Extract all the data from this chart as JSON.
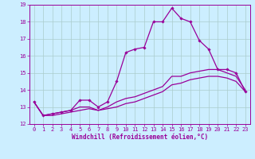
{
  "xlabel": "Windchill (Refroidissement éolien,°C)",
  "xlim": [
    -0.5,
    23.5
  ],
  "ylim": [
    12,
    19
  ],
  "yticks": [
    12,
    13,
    14,
    15,
    16,
    17,
    18,
    19
  ],
  "xticks": [
    0,
    1,
    2,
    3,
    4,
    5,
    6,
    7,
    8,
    9,
    10,
    11,
    12,
    13,
    14,
    15,
    16,
    17,
    18,
    19,
    20,
    21,
    22,
    23
  ],
  "bg_color": "#cceeff",
  "line_color": "#990099",
  "grid_color": "#aacccc",
  "series1_x": [
    0,
    1,
    2,
    3,
    4,
    5,
    6,
    7,
    8,
    9,
    10,
    11,
    12,
    13,
    14,
    15,
    16,
    17,
    18,
    19,
    20,
    21,
    22,
    23
  ],
  "series1_y": [
    13.3,
    12.5,
    12.6,
    12.7,
    12.8,
    13.4,
    13.4,
    13.0,
    13.3,
    14.5,
    16.2,
    16.4,
    16.5,
    18.0,
    18.0,
    18.8,
    18.2,
    18.0,
    16.9,
    16.4,
    15.2,
    15.2,
    15.0,
    13.9
  ],
  "series2_x": [
    0,
    1,
    2,
    3,
    4,
    5,
    6,
    7,
    8,
    9,
    10,
    11,
    12,
    13,
    14,
    15,
    16,
    17,
    18,
    19,
    20,
    21,
    22,
    23
  ],
  "series2_y": [
    13.3,
    12.5,
    12.6,
    12.7,
    12.8,
    13.0,
    13.0,
    12.8,
    13.0,
    13.3,
    13.5,
    13.6,
    13.8,
    14.0,
    14.2,
    14.8,
    14.8,
    15.0,
    15.1,
    15.2,
    15.2,
    15.0,
    14.8,
    14.0
  ],
  "series3_x": [
    0,
    1,
    2,
    3,
    4,
    5,
    6,
    7,
    8,
    9,
    10,
    11,
    12,
    13,
    14,
    15,
    16,
    17,
    18,
    19,
    20,
    21,
    22,
    23
  ],
  "series3_y": [
    13.3,
    12.5,
    12.5,
    12.6,
    12.7,
    12.8,
    12.9,
    12.8,
    12.9,
    13.0,
    13.2,
    13.3,
    13.5,
    13.7,
    13.9,
    14.3,
    14.4,
    14.6,
    14.7,
    14.8,
    14.8,
    14.7,
    14.5,
    13.9
  ],
  "xlabel_fontsize": 5.5,
  "tick_fontsize": 5.0,
  "marker_size": 1.8,
  "line_width": 0.9
}
